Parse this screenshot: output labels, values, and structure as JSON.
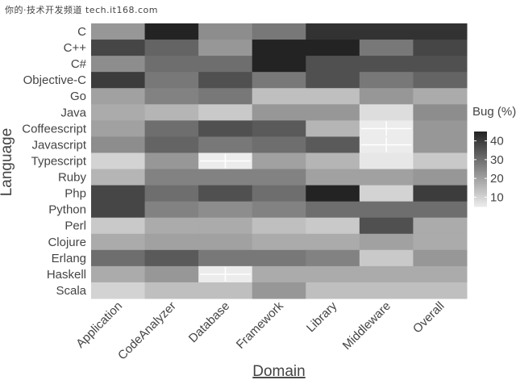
{
  "watermark": "你的·技术开发频道 tech.it168.com",
  "chart_data": {
    "type": "heatmap",
    "title": "",
    "xlabel": "Domain",
    "ylabel": "Language",
    "x": [
      "Application",
      "CodeAnalyzer",
      "Database",
      "Framework",
      "Library",
      "Middleware",
      "Overall"
    ],
    "y": [
      "C",
      "C++",
      "C#",
      "Objective-C",
      "Go",
      "Java",
      "Coffeescript",
      "Javascript",
      "Typescript",
      "Ruby",
      "Php",
      "Python",
      "Perl",
      "Clojure",
      "Erlang",
      "Haskell",
      "Scala"
    ],
    "values": [
      [
        22,
        48,
        24,
        28,
        42,
        42,
        42
      ],
      [
        38,
        32,
        22,
        48,
        48,
        28,
        38
      ],
      [
        24,
        30,
        30,
        48,
        36,
        36,
        36
      ],
      [
        40,
        28,
        36,
        28,
        36,
        28,
        32
      ],
      [
        20,
        26,
        28,
        14,
        14,
        22,
        18
      ],
      [
        18,
        16,
        12,
        22,
        22,
        8,
        24
      ],
      [
        20,
        30,
        36,
        34,
        16,
        5,
        22
      ],
      [
        24,
        32,
        28,
        30,
        34,
        5,
        22
      ],
      [
        10,
        22,
        5,
        20,
        16,
        6,
        12
      ],
      [
        16,
        26,
        26,
        26,
        20,
        20,
        22
      ],
      [
        38,
        30,
        36,
        30,
        48,
        10,
        40
      ],
      [
        38,
        26,
        24,
        26,
        30,
        30,
        30
      ],
      [
        12,
        18,
        18,
        14,
        12,
        36,
        18
      ],
      [
        18,
        20,
        20,
        18,
        18,
        20,
        18
      ],
      [
        30,
        34,
        28,
        28,
        26,
        12,
        22
      ],
      [
        18,
        22,
        3,
        18,
        18,
        18,
        18
      ],
      [
        10,
        14,
        14,
        22,
        14,
        14,
        14
      ]
    ],
    "missing": [
      {
        "x": "Middleware",
        "y": "Coffeescript"
      },
      {
        "x": "Middleware",
        "y": "Javascript"
      },
      {
        "x": "Database",
        "y": "Typescript"
      },
      {
        "x": "Database",
        "y": "Haskell"
      }
    ],
    "legend": {
      "title": "Bug (%)",
      "ticks": [
        10,
        20,
        30,
        40
      ],
      "range": [
        5,
        45
      ],
      "placement": "right"
    },
    "colors": {
      "low": "#ececec",
      "high": "#232323"
    }
  }
}
